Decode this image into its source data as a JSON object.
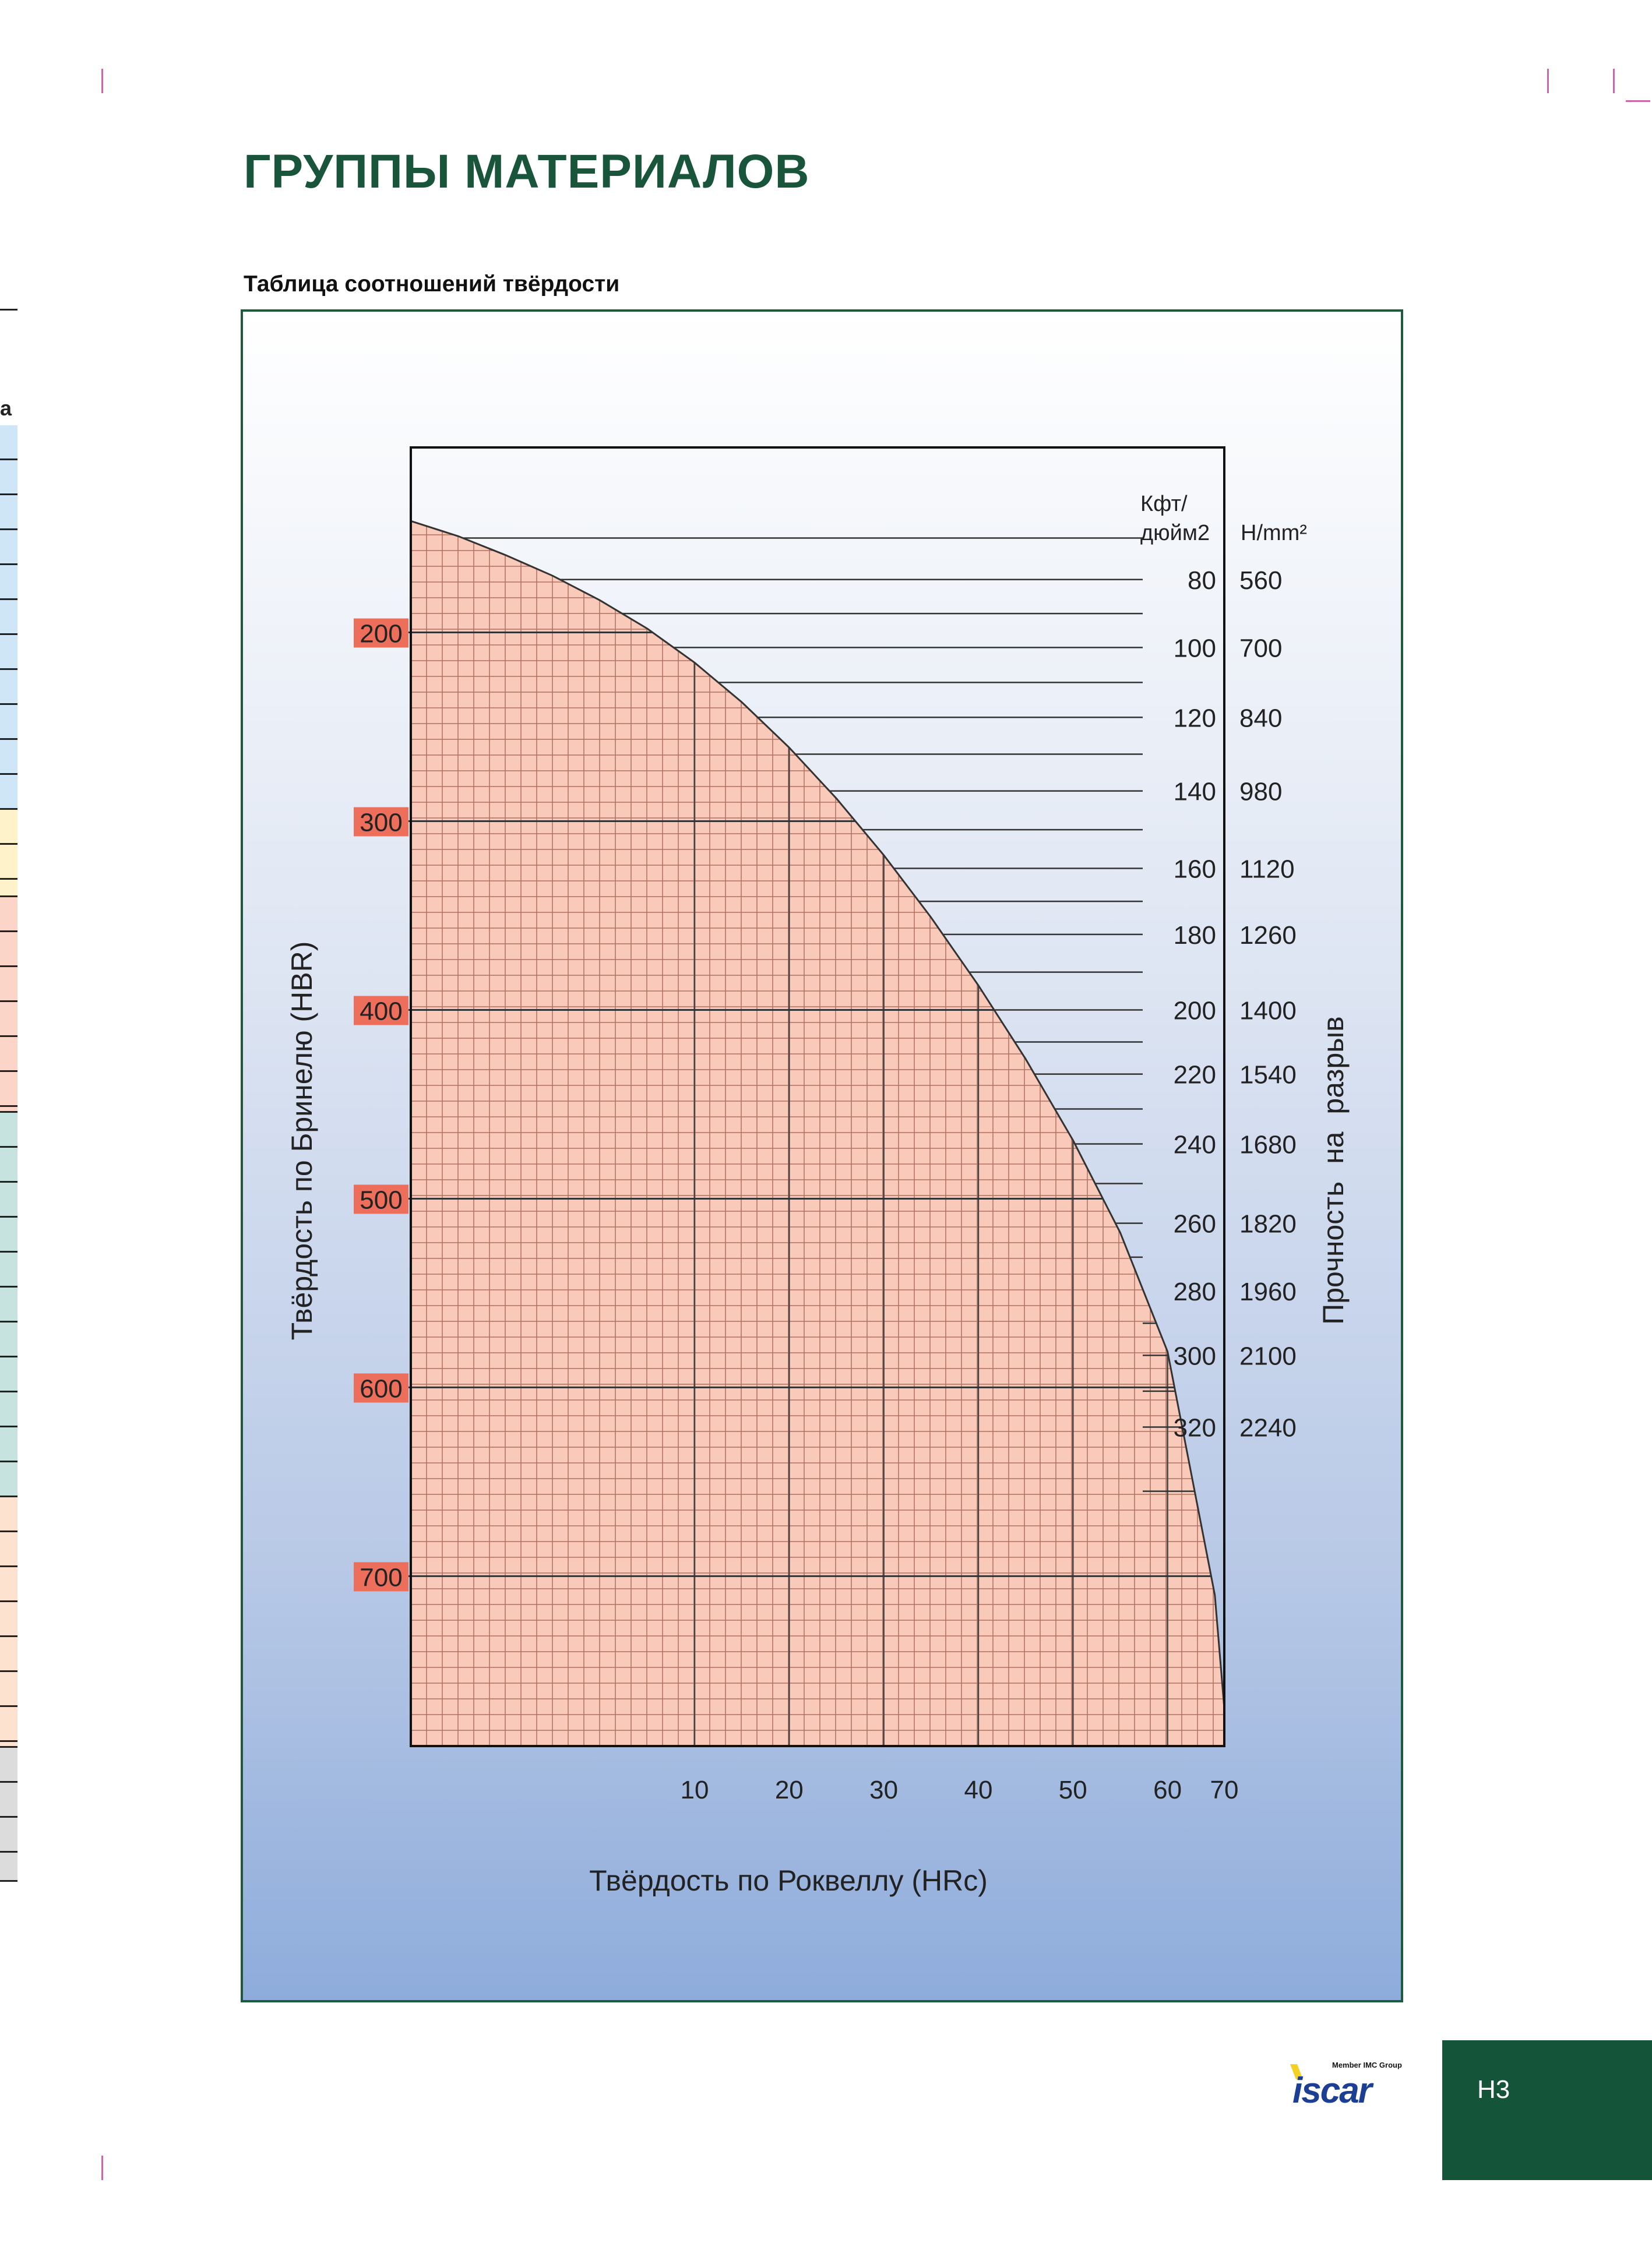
{
  "page": {
    "title": "ГРУППЫ МАТЕРИАЛОВ",
    "chart_caption": "Таблица соотношений твёрдости",
    "page_number": "H3",
    "logo_member_text": "Member IMC Group",
    "logo_brand": "iscar",
    "left_strip_letter": "a"
  },
  "colors": {
    "title": "#18553a",
    "frame": "#1e5a3c",
    "curve_fill": "#f9c9b9",
    "grid_line": "#b07060",
    "hbr_label_bg": "#ee6e5c",
    "page_tab": "#14553a",
    "logo_yellow": "#f2d024",
    "logo_blue": "#1c3f94"
  },
  "chart_data": {
    "type": "area",
    "xlabel": "Твёрдость по Роквеллу (HRc)",
    "ylabel": "Твёрдость по Бринелю (HBR)",
    "right_label": "Прочность на разрыв",
    "right_units": [
      "Кфт/ дюйм2",
      "H/mm²"
    ],
    "x_ticks": [
      10,
      20,
      30,
      40,
      50,
      60,
      70
    ],
    "y_ticks": [
      200,
      300,
      400,
      500,
      600,
      700
    ],
    "xlim": [
      -20,
      66
    ],
    "ylim": [
      102,
      790
    ],
    "y_inverted": true,
    "grid": true,
    "curve": {
      "x": [
        -20,
        -15,
        -10,
        -5,
        0,
        5,
        10,
        15,
        20,
        25,
        30,
        35,
        40,
        45,
        50,
        55,
        60,
        65,
        66
      ],
      "y": [
        141,
        149,
        159,
        170,
        183,
        198,
        216,
        237,
        261,
        288,
        318,
        351,
        387,
        426,
        469,
        518,
        581,
        710,
        770
      ]
    },
    "tensile_strength": [
      {
        "kfi": "80",
        "nmm": "560",
        "hbr": 172
      },
      {
        "kfi": "100",
        "nmm": "700",
        "hbr": 208
      },
      {
        "kfi": "120",
        "nmm": "840",
        "hbr": 245
      },
      {
        "kfi": "140",
        "nmm": "980",
        "hbr": 284
      },
      {
        "kfi": "160",
        "nmm": "1120",
        "hbr": 325
      },
      {
        "kfi": "180",
        "nmm": "1260",
        "hbr": 360
      },
      {
        "kfi": "200",
        "nmm": "1400",
        "hbr": 400
      },
      {
        "kfi": "220",
        "nmm": "1540",
        "hbr": 434
      },
      {
        "kfi": "240",
        "nmm": "1680",
        "hbr": 471
      },
      {
        "kfi": "260",
        "nmm": "1820",
        "hbr": 513
      },
      {
        "kfi": "280",
        "nmm": "1960",
        "hbr": 549
      },
      {
        "kfi": "300",
        "nmm": "2100",
        "hbr": 583
      },
      {
        "kfi": "320",
        "nmm": "2240",
        "hbr": 621
      }
    ]
  }
}
